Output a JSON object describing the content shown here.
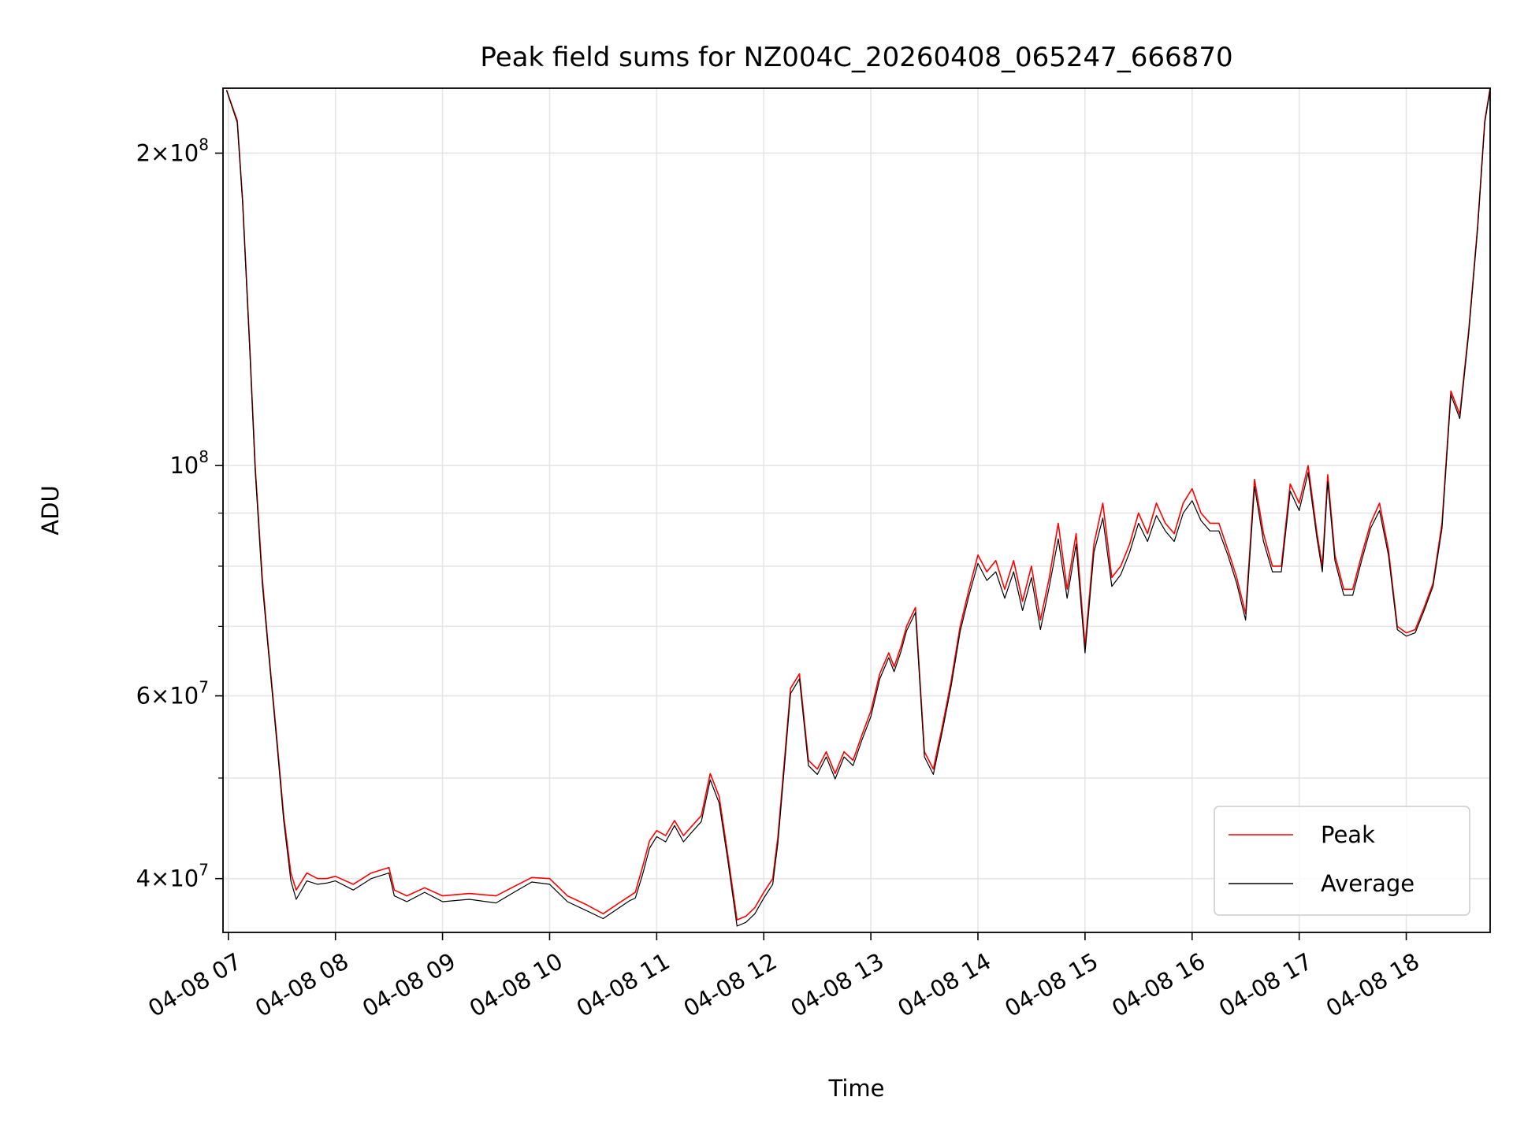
{
  "chart_data": {
    "type": "line",
    "title": "Peak field sums for NZ004C_20260408_065247_666870",
    "xlabel": "Time",
    "ylabel": "ADU",
    "y_scale": "log",
    "ylim": [
      35500000,
      231000000
    ],
    "xlim": [
      "2026-04-08T06:57:00",
      "2026-04-08T18:47:00"
    ],
    "y_major_ticks": [
      {
        "value": 40000000,
        "base": "4×10",
        "exp": "7"
      },
      {
        "value": 60000000,
        "base": "6×10",
        "exp": "7"
      },
      {
        "value": 100000000,
        "base": "10",
        "exp": "8"
      },
      {
        "value": 200000000,
        "base": "2×10",
        "exp": "8"
      }
    ],
    "y_minor_ticks": [
      50000000,
      70000000,
      80000000,
      90000000
    ],
    "x_tick_labels": [
      "04-08 07",
      "04-08 08",
      "04-08 09",
      "04-08 10",
      "04-08 11",
      "04-08 12",
      "04-08 13",
      "04-08 14",
      "04-08 15",
      "04-08 16",
      "04-08 17",
      "04-08 18"
    ],
    "x_tick_times": [
      "2026-04-08T07:00:00",
      "2026-04-08T08:00:00",
      "2026-04-08T09:00:00",
      "2026-04-08T10:00:00",
      "2026-04-08T11:00:00",
      "2026-04-08T12:00:00",
      "2026-04-08T13:00:00",
      "2026-04-08T14:00:00",
      "2026-04-08T15:00:00",
      "2026-04-08T16:00:00",
      "2026-04-08T17:00:00",
      "2026-04-08T18:00:00"
    ],
    "grid": true,
    "legend_position": "lower-right",
    "series": [
      {
        "name": "Peak",
        "color": "#ff0000",
        "x": [
          "06:59",
          "07:05",
          "07:08",
          "07:12",
          "07:15",
          "07:19",
          "07:22",
          "07:27",
          "07:31",
          "07:35",
          "07:38",
          "07:44",
          "07:50",
          "07:55",
          "08:00",
          "08:10",
          "08:20",
          "08:30",
          "08:33",
          "08:40",
          "08:50",
          "09:00",
          "09:15",
          "09:30",
          "09:40",
          "09:50",
          "10:00",
          "10:10",
          "10:20",
          "10:30",
          "10:40",
          "10:45",
          "10:48",
          "10:52",
          "10:56",
          "11:00",
          "11:05",
          "11:10",
          "11:15",
          "11:20",
          "11:25",
          "11:30",
          "11:35",
          "11:40",
          "11:45",
          "11:50",
          "11:55",
          "12:00",
          "12:05",
          "12:08",
          "12:12",
          "12:15",
          "12:20",
          "12:25",
          "12:30",
          "12:35",
          "12:40",
          "12:45",
          "12:50",
          "12:55",
          "13:00",
          "13:05",
          "13:10",
          "13:13",
          "13:17",
          "13:20",
          "13:25",
          "13:30",
          "13:35",
          "13:40",
          "13:45",
          "13:50",
          "13:55",
          "14:00",
          "14:05",
          "14:10",
          "14:15",
          "14:20",
          "14:25",
          "14:30",
          "14:35",
          "14:40",
          "14:45",
          "14:50",
          "14:55",
          "15:00",
          "15:05",
          "15:10",
          "15:15",
          "15:20",
          "15:25",
          "15:30",
          "15:35",
          "15:40",
          "15:45",
          "15:50",
          "15:55",
          "16:00",
          "16:05",
          "16:10",
          "16:15",
          "16:20",
          "16:25",
          "16:30",
          "16:35",
          "16:40",
          "16:45",
          "16:50",
          "16:55",
          "17:00",
          "17:05",
          "17:10",
          "17:13",
          "17:16",
          "17:20",
          "17:25",
          "17:30",
          "17:35",
          "17:40",
          "17:45",
          "17:50",
          "17:55",
          "18:00",
          "18:05",
          "18:10",
          "18:15",
          "18:20",
          "18:25",
          "18:30",
          "18:35",
          "18:40",
          "18:44",
          "18:47"
        ],
        "values": [
          230000000,
          215000000,
          180000000,
          130000000,
          100000000,
          78000000,
          68000000,
          55000000,
          46000000,
          40500000,
          39000000,
          40500000,
          40000000,
          40000000,
          40200000,
          39500000,
          40500000,
          41000000,
          39000000,
          38500000,
          39200000,
          38500000,
          38700000,
          38500000,
          39300000,
          40100000,
          40000000,
          38500000,
          37800000,
          37000000,
          38000000,
          38500000,
          38800000,
          41000000,
          43500000,
          44500000,
          44000000,
          45500000,
          44000000,
          45000000,
          46000000,
          50500000,
          48000000,
          42000000,
          36500000,
          36800000,
          37500000,
          38800000,
          40000000,
          44000000,
          53000000,
          61000000,
          63000000,
          52000000,
          51000000,
          53000000,
          50500000,
          53000000,
          52000000,
          55000000,
          58000000,
          63000000,
          66000000,
          64000000,
          67000000,
          70000000,
          73000000,
          53000000,
          51000000,
          56000000,
          62000000,
          70000000,
          76000000,
          82000000,
          79000000,
          81000000,
          76000000,
          81000000,
          74000000,
          80000000,
          71000000,
          78000000,
          88000000,
          76000000,
          86000000,
          67000000,
          84000000,
          92000000,
          78000000,
          80000000,
          84000000,
          90000000,
          86000000,
          92000000,
          88000000,
          86000000,
          92000000,
          95000000,
          90000000,
          88000000,
          88000000,
          83000000,
          78000000,
          72000000,
          97000000,
          86000000,
          80000000,
          80000000,
          96000000,
          92000000,
          100000000,
          86000000,
          80000000,
          98000000,
          82000000,
          76000000,
          76000000,
          82000000,
          88000000,
          92000000,
          83000000,
          70000000,
          69000000,
          69500000,
          73000000,
          77000000,
          88000000,
          118000000,
          112000000,
          135000000,
          170000000,
          215000000,
          231000000
        ]
      },
      {
        "name": "Average",
        "color": "#000000",
        "x": [
          "06:59",
          "07:05",
          "07:08",
          "07:12",
          "07:15",
          "07:19",
          "07:22",
          "07:27",
          "07:31",
          "07:35",
          "07:38",
          "07:44",
          "07:50",
          "07:55",
          "08:00",
          "08:10",
          "08:20",
          "08:30",
          "08:33",
          "08:40",
          "08:50",
          "09:00",
          "09:15",
          "09:30",
          "09:40",
          "09:50",
          "10:00",
          "10:10",
          "10:20",
          "10:30",
          "10:40",
          "10:45",
          "10:48",
          "10:52",
          "10:56",
          "11:00",
          "11:05",
          "11:10",
          "11:15",
          "11:20",
          "11:25",
          "11:30",
          "11:35",
          "11:40",
          "11:45",
          "11:50",
          "11:55",
          "12:00",
          "12:05",
          "12:08",
          "12:12",
          "12:15",
          "12:20",
          "12:25",
          "12:30",
          "12:35",
          "12:40",
          "12:45",
          "12:50",
          "12:55",
          "13:00",
          "13:05",
          "13:10",
          "13:13",
          "13:17",
          "13:20",
          "13:25",
          "13:30",
          "13:35",
          "13:40",
          "13:45",
          "13:50",
          "13:55",
          "14:00",
          "14:05",
          "14:10",
          "14:15",
          "14:20",
          "14:25",
          "14:30",
          "14:35",
          "14:40",
          "14:45",
          "14:50",
          "14:55",
          "15:00",
          "15:05",
          "15:10",
          "15:15",
          "15:20",
          "15:25",
          "15:30",
          "15:35",
          "15:40",
          "15:45",
          "15:50",
          "15:55",
          "16:00",
          "16:05",
          "16:10",
          "16:15",
          "16:20",
          "16:25",
          "16:30",
          "16:35",
          "16:40",
          "16:45",
          "16:50",
          "16:55",
          "17:00",
          "17:05",
          "17:10",
          "17:13",
          "17:16",
          "17:20",
          "17:25",
          "17:30",
          "17:35",
          "17:40",
          "17:45",
          "17:50",
          "17:55",
          "18:00",
          "18:05",
          "18:10",
          "18:15",
          "18:20",
          "18:25",
          "18:30",
          "18:35",
          "18:40",
          "18:44",
          "18:47"
        ],
        "values": [
          230000000,
          214000000,
          179000000,
          129000000,
          99000000,
          77000000,
          67500000,
          54500000,
          45500000,
          39800000,
          38200000,
          39800000,
          39500000,
          39600000,
          39800000,
          39000000,
          40000000,
          40500000,
          38500000,
          38000000,
          38800000,
          38000000,
          38200000,
          37900000,
          38800000,
          39700000,
          39500000,
          38000000,
          37300000,
          36600000,
          37600000,
          38100000,
          38300000,
          40300000,
          42800000,
          43900000,
          43400000,
          45000000,
          43400000,
          44400000,
          45400000,
          49800000,
          47300000,
          41500000,
          36000000,
          36300000,
          37000000,
          38300000,
          39500000,
          43400000,
          52300000,
          60300000,
          62300000,
          51400000,
          50400000,
          52400000,
          49900000,
          52400000,
          51400000,
          54400000,
          57300000,
          62300000,
          65300000,
          63300000,
          66300000,
          69300000,
          72200000,
          52400000,
          50400000,
          55400000,
          61300000,
          69200000,
          75000000,
          80500000,
          77500000,
          79000000,
          74500000,
          79000000,
          72500000,
          78000000,
          69500000,
          76500000,
          85000000,
          74500000,
          84000000,
          66000000,
          82500000,
          89000000,
          76500000,
          78500000,
          82500000,
          88000000,
          84500000,
          89500000,
          86500000,
          84500000,
          90000000,
          92500000,
          88500000,
          86500000,
          86500000,
          82000000,
          77000000,
          71000000,
          95500000,
          84500000,
          79000000,
          79000000,
          94500000,
          90500000,
          98500000,
          85000000,
          79000000,
          96500000,
          81000000,
          75000000,
          75000000,
          81000000,
          87000000,
          90500000,
          82000000,
          69500000,
          68500000,
          69000000,
          72500000,
          76500000,
          87000000,
          117000000,
          111000000,
          134000000,
          169000000,
          214000000,
          230500000
        ]
      }
    ]
  }
}
